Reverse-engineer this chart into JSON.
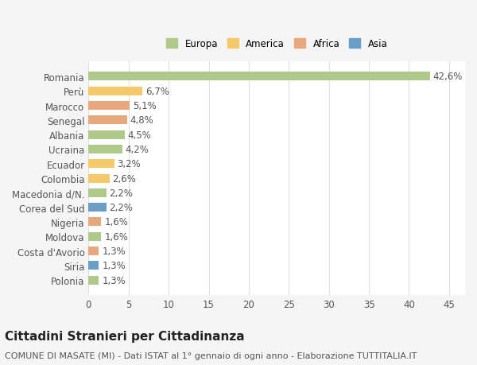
{
  "categories": [
    "Romania",
    "Perù",
    "Marocco",
    "Senegal",
    "Albania",
    "Ucraina",
    "Ecuador",
    "Colombia",
    "Macedonia d/N.",
    "Corea del Sud",
    "Nigeria",
    "Moldova",
    "Costa d'Avorio",
    "Siria",
    "Polonia"
  ],
  "values": [
    42.6,
    6.7,
    5.1,
    4.8,
    4.5,
    4.2,
    3.2,
    2.6,
    2.2,
    2.2,
    1.6,
    1.6,
    1.3,
    1.3,
    1.3
  ],
  "labels": [
    "42,6%",
    "6,7%",
    "5,1%",
    "4,8%",
    "4,5%",
    "4,2%",
    "3,2%",
    "2,6%",
    "2,2%",
    "2,2%",
    "1,6%",
    "1,6%",
    "1,3%",
    "1,3%",
    "1,3%"
  ],
  "continents": [
    "Europa",
    "America",
    "Africa",
    "Africa",
    "Europa",
    "Europa",
    "America",
    "America",
    "Europa",
    "Asia",
    "Africa",
    "Europa",
    "Africa",
    "Asia",
    "Europa"
  ],
  "continent_colors": {
    "Europa": "#aec98a",
    "America": "#f5c96a",
    "Africa": "#e8a87c",
    "Asia": "#6a9dc8"
  },
  "legend_order": [
    "Europa",
    "America",
    "Africa",
    "Asia"
  ],
  "bg_color": "#f5f5f5",
  "plot_bg_color": "#ffffff",
  "grid_color": "#e0e0e0",
  "title": "Cittadini Stranieri per Cittadinanza",
  "subtitle": "COMUNE DI MASATE (MI) - Dati ISTAT al 1° gennaio di ogni anno - Elaborazione TUTTITALIA.IT",
  "xlim": [
    0,
    47
  ],
  "xticks": [
    0,
    5,
    10,
    15,
    20,
    25,
    30,
    35,
    40,
    45
  ],
  "bar_height": 0.6,
  "label_fontsize": 8.5,
  "tick_fontsize": 8.5,
  "title_fontsize": 11,
  "subtitle_fontsize": 8.0
}
